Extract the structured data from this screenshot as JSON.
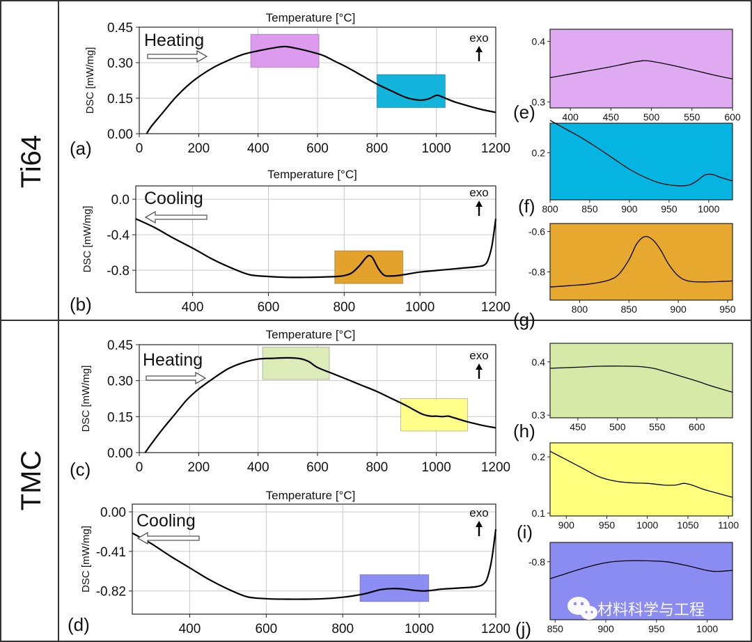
{
  "side_labels": [
    "Ti64",
    "TMC"
  ],
  "watermark": "材料科学与工程",
  "chart_data": [
    {
      "id": "a",
      "panel_label": "(a)",
      "type": "line",
      "title": "Temperature [°C]",
      "xlabel": "Temperature [°C]",
      "ylabel": "DSC [mW/mg]",
      "phase": "Heating",
      "direction": "right",
      "exo_label": "exo",
      "xlim": [
        0,
        1200
      ],
      "ylim": [
        0,
        0.45
      ],
      "xticks": [
        0,
        200,
        400,
        600,
        800,
        1000,
        1200
      ],
      "yticks": [
        0.0,
        0.15,
        0.3,
        0.45
      ],
      "ytick_labels": [
        "0.00",
        "0.15",
        "0.30",
        "0.45"
      ],
      "grid": true,
      "x": [
        25,
        40,
        80,
        120,
        160,
        200,
        250,
        300,
        350,
        400,
        450,
        490,
        530,
        580,
        620,
        660,
        700,
        750,
        800,
        850,
        900,
        940,
        960,
        980,
        995,
        1005,
        1015,
        1030,
        1060,
        1100,
        1150,
        1200
      ],
      "y": [
        0.0,
        0.03,
        0.09,
        0.15,
        0.2,
        0.24,
        0.28,
        0.31,
        0.335,
        0.35,
        0.362,
        0.368,
        0.36,
        0.345,
        0.33,
        0.305,
        0.28,
        0.245,
        0.21,
        0.18,
        0.152,
        0.142,
        0.143,
        0.15,
        0.16,
        0.162,
        0.158,
        0.15,
        0.135,
        0.12,
        0.103,
        0.09
      ],
      "highlights": [
        {
          "x": [
            375,
            605
          ],
          "y": [
            0.28,
            0.42
          ],
          "color": "#dc9bef"
        },
        {
          "x": [
            800,
            1030
          ],
          "y": [
            0.11,
            0.25
          ],
          "color": "#12b4dc"
        }
      ]
    },
    {
      "id": "b",
      "panel_label": "(b)",
      "type": "line",
      "title": "Temperature [°C]",
      "xlabel": "Temperature [°C]",
      "ylabel": "DSC [mW/mg]",
      "phase": "Cooling",
      "direction": "left",
      "exo_label": "exo",
      "xlim": [
        250,
        1200
      ],
      "ylim": [
        -1.05,
        0.15
      ],
      "xticks": [
        400,
        600,
        800,
        1000,
        1200
      ],
      "yticks": [
        0.0,
        -0.4,
        -0.8
      ],
      "ytick_labels": [
        "0.0",
        "-0.4",
        "-0.8"
      ],
      "grid": true,
      "x": [
        250,
        300,
        350,
        400,
        450,
        500,
        550,
        600,
        650,
        700,
        750,
        780,
        800,
        820,
        840,
        855,
        865,
        875,
        890,
        905,
        920,
        950,
        1000,
        1050,
        1100,
        1150,
        1170,
        1180,
        1190,
        1200
      ],
      "y": [
        -0.22,
        -0.32,
        -0.44,
        -0.55,
        -0.67,
        -0.77,
        -0.85,
        -0.87,
        -0.88,
        -0.88,
        -0.875,
        -0.87,
        -0.86,
        -0.83,
        -0.75,
        -0.67,
        -0.635,
        -0.66,
        -0.78,
        -0.855,
        -0.865,
        -0.855,
        -0.82,
        -0.8,
        -0.78,
        -0.76,
        -0.74,
        -0.68,
        -0.52,
        -0.22
      ],
      "highlights": [
        {
          "x": [
            775,
            955
          ],
          "y": [
            -0.95,
            -0.58
          ],
          "color": "#e3a22c"
        }
      ]
    },
    {
      "id": "c",
      "panel_label": "(c)",
      "type": "line",
      "title": "Temperature [°C]",
      "xlabel": "Temperature [°C]",
      "ylabel": "DSC [mW/mg]",
      "phase": "Heating",
      "direction": "right",
      "exo_label": "exo",
      "xlim": [
        0,
        1200
      ],
      "ylim": [
        0,
        0.45
      ],
      "xticks": [
        0,
        200,
        400,
        600,
        800,
        1000,
        1200
      ],
      "yticks": [
        0.0,
        0.15,
        0.3,
        0.45
      ],
      "ytick_labels": [
        "0.00",
        "0.15",
        "0.30",
        "0.45"
      ],
      "grid": true,
      "x": [
        20,
        40,
        80,
        120,
        160,
        200,
        250,
        300,
        350,
        400,
        450,
        500,
        540,
        570,
        600,
        650,
        700,
        750,
        800,
        850,
        900,
        950,
        980,
        1000,
        1020,
        1040,
        1060,
        1100,
        1150,
        1200
      ],
      "y": [
        0.0,
        0.035,
        0.1,
        0.16,
        0.22,
        0.265,
        0.31,
        0.35,
        0.375,
        0.39,
        0.393,
        0.395,
        0.392,
        0.38,
        0.355,
        0.33,
        0.305,
        0.28,
        0.255,
        0.225,
        0.195,
        0.162,
        0.152,
        0.152,
        0.15,
        0.152,
        0.145,
        0.13,
        0.115,
        0.103
      ],
      "highlights": [
        {
          "x": [
            415,
            640
          ],
          "y": [
            0.305,
            0.44
          ],
          "color": "#dcebb8"
        },
        {
          "x": [
            880,
            1105
          ],
          "y": [
            0.09,
            0.225
          ],
          "color": "#ffff8a"
        }
      ]
    },
    {
      "id": "d",
      "panel_label": "(d)",
      "type": "line",
      "title": "Temperature [°C]",
      "xlabel": "Temperature [°C]",
      "ylabel": "DSC [mW/mg]",
      "phase": "Cooling",
      "direction": "left",
      "exo_label": "exo",
      "xlim": [
        250,
        1200
      ],
      "ylim": [
        -1.06,
        0.08
      ],
      "xticks": [
        400,
        600,
        800,
        1000,
        1200
      ],
      "yticks": [
        0.0,
        -0.41,
        -0.82
      ],
      "ytick_labels": [
        "0.00",
        "-0.41",
        "-0.82"
      ],
      "grid": true,
      "x": [
        250,
        300,
        350,
        400,
        450,
        500,
        550,
        600,
        650,
        700,
        750,
        800,
        850,
        880,
        900,
        930,
        960,
        990,
        1010,
        1030,
        1060,
        1100,
        1150,
        1170,
        1180,
        1190,
        1200
      ],
      "y": [
        -0.22,
        -0.33,
        -0.46,
        -0.58,
        -0.7,
        -0.8,
        -0.88,
        -0.9,
        -0.905,
        -0.905,
        -0.9,
        -0.885,
        -0.855,
        -0.825,
        -0.805,
        -0.795,
        -0.8,
        -0.815,
        -0.82,
        -0.815,
        -0.8,
        -0.79,
        -0.775,
        -0.74,
        -0.66,
        -0.48,
        -0.18
      ],
      "highlights": [
        {
          "x": [
            845,
            1025
          ],
          "y": [
            -0.93,
            -0.65
          ],
          "color": "#8c8ef4"
        }
      ]
    },
    {
      "id": "e",
      "panel_label": "(e)",
      "type": "line",
      "inset": true,
      "background": "#dfaaf2",
      "xlim": [
        375,
        600
      ],
      "ylim": [
        0.29,
        0.42
      ],
      "xticks": [
        400,
        450,
        500,
        550,
        600
      ],
      "yticks": [
        0.3,
        0.4
      ],
      "ytick_labels": [
        "0.3",
        "0.4"
      ],
      "x": [
        375,
        400,
        425,
        450,
        475,
        490,
        500,
        520,
        550,
        575,
        600
      ],
      "y": [
        0.34,
        0.346,
        0.352,
        0.358,
        0.365,
        0.368,
        0.367,
        0.362,
        0.353,
        0.345,
        0.338
      ]
    },
    {
      "id": "f",
      "panel_label": "(f)",
      "type": "line",
      "inset": true,
      "background": "#05b4e0",
      "xlim": [
        800,
        1030
      ],
      "ylim": [
        0.12,
        0.25
      ],
      "xticks": [
        800,
        850,
        900,
        950,
        1000
      ],
      "yticks": [
        0.2
      ],
      "ytick_labels": [
        "0.2"
      ],
      "x": [
        800,
        820,
        840,
        860,
        880,
        900,
        920,
        940,
        960,
        975,
        985,
        995,
        1005,
        1015,
        1030
      ],
      "y": [
        0.255,
        0.24,
        0.225,
        0.208,
        0.19,
        0.172,
        0.158,
        0.148,
        0.144,
        0.145,
        0.152,
        0.162,
        0.163,
        0.158,
        0.152
      ]
    },
    {
      "id": "g",
      "panel_label": "(g)",
      "type": "line",
      "inset": true,
      "background": "#e6a82e",
      "xlim": [
        770,
        955
      ],
      "ylim": [
        -0.94,
        -0.56
      ],
      "xticks": [
        800,
        850,
        900,
        950
      ],
      "yticks": [
        -0.6,
        -0.8
      ],
      "ytick_labels": [
        "-0.6",
        "-0.8"
      ],
      "x": [
        770,
        790,
        810,
        830,
        840,
        850,
        858,
        866,
        874,
        882,
        890,
        900,
        910,
        925,
        940,
        955
      ],
      "y": [
        -0.875,
        -0.868,
        -0.86,
        -0.84,
        -0.81,
        -0.74,
        -0.66,
        -0.625,
        -0.64,
        -0.69,
        -0.76,
        -0.82,
        -0.845,
        -0.85,
        -0.848,
        -0.845
      ]
    },
    {
      "id": "h",
      "panel_label": "(h)",
      "type": "line",
      "inset": true,
      "background": "#d6e9a6",
      "xlim": [
        415,
        645
      ],
      "ylim": [
        0.295,
        0.435
      ],
      "xticks": [
        450,
        500,
        550,
        600
      ],
      "yticks": [
        0.3,
        0.4
      ],
      "ytick_labels": [
        "0.3",
        "0.4"
      ],
      "x": [
        415,
        450,
        480,
        510,
        530,
        545,
        560,
        580,
        600,
        620,
        645
      ],
      "y": [
        0.388,
        0.39,
        0.392,
        0.392,
        0.391,
        0.388,
        0.382,
        0.373,
        0.364,
        0.354,
        0.343
      ]
    },
    {
      "id": "i",
      "panel_label": "(i)",
      "type": "line",
      "inset": true,
      "background": "#ffff7e",
      "xlim": [
        880,
        1105
      ],
      "ylim": [
        0.095,
        0.225
      ],
      "xticks": [
        900,
        950,
        1000,
        1050,
        1100
      ],
      "yticks": [
        0.1,
        0.2
      ],
      "ytick_labels": [
        "0.1",
        "0.2"
      ],
      "x": [
        880,
        900,
        920,
        940,
        960,
        980,
        1000,
        1020,
        1035,
        1045,
        1055,
        1070,
        1085,
        1105
      ],
      "y": [
        0.21,
        0.195,
        0.18,
        0.165,
        0.157,
        0.154,
        0.153,
        0.15,
        0.15,
        0.153,
        0.15,
        0.142,
        0.136,
        0.128
      ]
    },
    {
      "id": "j",
      "panel_label": "(j)",
      "type": "line",
      "inset": true,
      "background": "#8b8cf2",
      "xlim": [
        845,
        1025
      ],
      "ylim": [
        -0.92,
        -0.76
      ],
      "xticks": [
        850,
        900,
        950,
        1000
      ],
      "yticks": [
        -0.8
      ],
      "ytick_labels": [
        "-0.8"
      ],
      "x": [
        845,
        860,
        880,
        900,
        920,
        940,
        960,
        980,
        1000,
        1010,
        1025
      ],
      "y": [
        -0.835,
        -0.825,
        -0.812,
        -0.802,
        -0.798,
        -0.798,
        -0.8,
        -0.808,
        -0.818,
        -0.82,
        -0.818
      ]
    }
  ]
}
